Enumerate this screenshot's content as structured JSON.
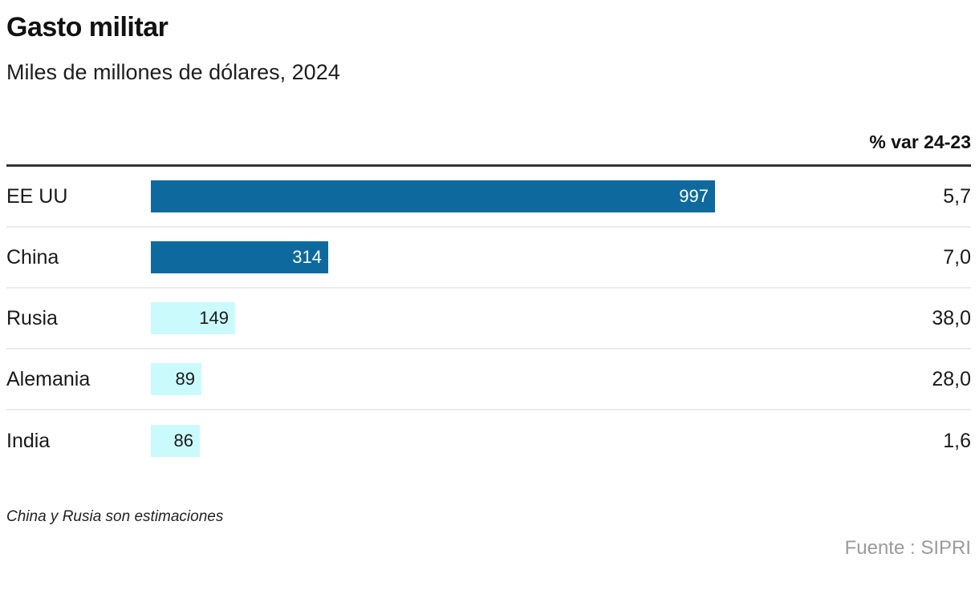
{
  "header": {
    "title": "Gasto militar",
    "subtitle": "Miles de millones de dólares, 2024",
    "var_column_label": "% var 24-23"
  },
  "chart_data": {
    "type": "bar",
    "orientation": "horizontal",
    "title": "Gasto militar",
    "subtitle": "Miles de millones de dólares, 2024",
    "unit": "miles de millones de dólares",
    "year": "2024",
    "categories": [
      "EE UU",
      "China",
      "Rusia",
      "Alemania",
      "India"
    ],
    "values": [
      997,
      314,
      149,
      89,
      86
    ],
    "value_labels": [
      "997",
      "314",
      "149",
      "89",
      "86"
    ],
    "var_column_label": "% var 24-23",
    "var_24_23": [
      "5,7",
      "7,0",
      "38,0",
      "28,0",
      "1,6"
    ],
    "emphasized": [
      true,
      true,
      false,
      false,
      false
    ],
    "xlim": [
      0,
      997
    ],
    "grid": false,
    "legend": false,
    "colors": {
      "primary_bar": "#0e6a9e",
      "secondary_bar": "#cbfafd",
      "header_rule": "#333333",
      "row_divider": "#ececec",
      "source_text": "#9b9b9b"
    }
  },
  "footer": {
    "note": "China y Rusia son estimaciones",
    "source": "Fuente : SIPRI"
  }
}
